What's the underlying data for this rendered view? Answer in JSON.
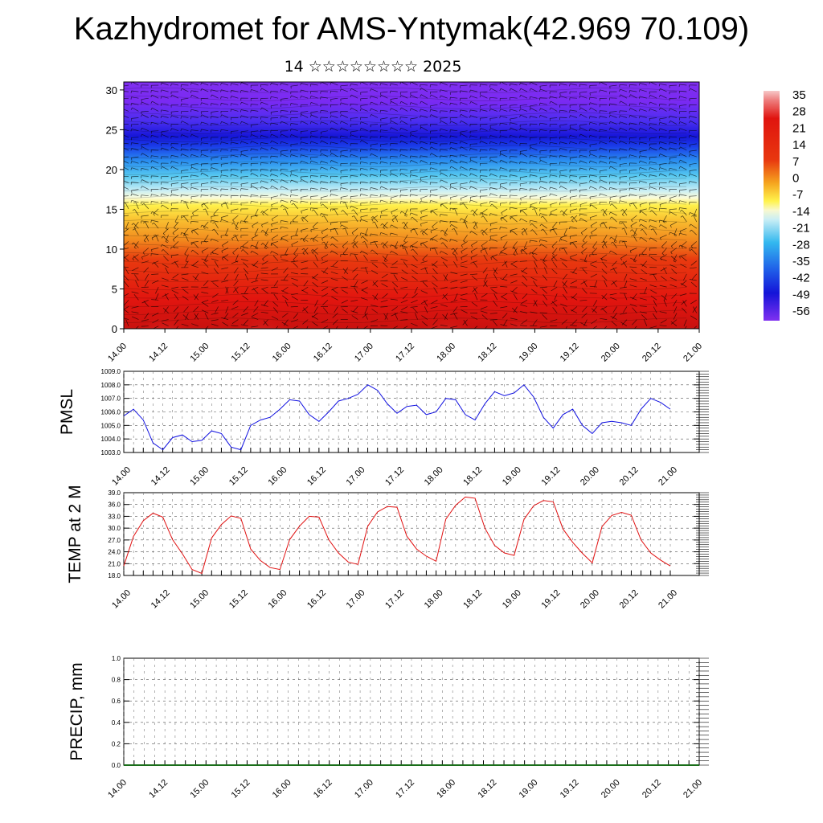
{
  "title": "Kazhydromet for AMS-Yntymak(42.969 70.109)",
  "subtitle": "14 ☆☆☆☆☆☆☆☆ 2025",
  "time_ticks": [
    "14.00",
    "14.12",
    "15.00",
    "15.12",
    "16.00",
    "16.12",
    "17.00",
    "17.12",
    "18.00",
    "18.12",
    "19.00",
    "19.12",
    "20.00",
    "20.12",
    "21.00"
  ],
  "chart_data": [
    {
      "type": "heatmap",
      "name": "temperature cross-section with wind barbs",
      "ylim": [
        0,
        31
      ],
      "yticks": [
        0,
        5,
        10,
        15,
        20,
        25,
        30
      ],
      "colorbar_labels": [
        "35",
        "28",
        "21",
        "14",
        "7",
        "0",
        "-7",
        "-14",
        "-21",
        "-28",
        "-35",
        "-42",
        "-49",
        "-56"
      ],
      "colors": {
        "top": "#7d26f2",
        "blue": "#1a1ee6",
        "cyan": "#2ab5f0",
        "light": "#c9eef5",
        "yellow": "#fff34d",
        "orange": "#f5a81e",
        "red": "#e6140f",
        "hot": "#f5a3a3"
      }
    },
    {
      "type": "line",
      "ylabel": "PMSL",
      "ylim": [
        1003.0,
        1009.0
      ],
      "yticks": [
        "1003.0",
        "1004.0",
        "1005.0",
        "1006.0",
        "1007.0",
        "1008.0",
        "1009.0"
      ],
      "color": "#1010e0",
      "values": [
        1005.7,
        1006.2,
        1005.4,
        1003.7,
        1003.2,
        1004.1,
        1004.3,
        1003.8,
        1003.9,
        1004.6,
        1004.4,
        1003.4,
        1003.2,
        1005.0,
        1005.4,
        1005.6,
        1006.2,
        1006.9,
        1006.8,
        1005.8,
        1005.3,
        1006.0,
        1006.8,
        1007.0,
        1007.3,
        1008.0,
        1007.6,
        1006.6,
        1005.9,
        1006.4,
        1006.5,
        1005.8,
        1006.0,
        1007.0,
        1006.9,
        1005.8,
        1005.4,
        1006.6,
        1007.5,
        1007.2,
        1007.4,
        1008.0,
        1007.1,
        1005.6,
        1004.8,
        1005.8,
        1006.2,
        1005.0,
        1004.4,
        1005.2,
        1005.3,
        1005.2,
        1005.0,
        1006.2,
        1007.0,
        1006.7,
        1006.2
      ]
    },
    {
      "type": "line",
      "ylabel": "TEMP at 2 M",
      "ylim": [
        18.0,
        39.0
      ],
      "yticks": [
        "18.0",
        "21.0",
        "24.0",
        "27.0",
        "30.0",
        "33.0",
        "36.0",
        "39.0"
      ],
      "color": "#e01010",
      "values": [
        20.4,
        27.9,
        31.9,
        33.8,
        32.8,
        27.1,
        23.5,
        19.5,
        18.5,
        27.5,
        30.9,
        33.1,
        32.5,
        24.7,
        21.8,
        20.0,
        19.5,
        27.1,
        30.5,
        33.0,
        32.8,
        27.1,
        23.7,
        21.4,
        20.8,
        30.5,
        34.1,
        35.5,
        35.3,
        28.0,
        24.7,
        22.9,
        21.6,
        32.3,
        35.8,
        37.9,
        37.6,
        30.0,
        25.6,
        23.7,
        23.1,
        32.2,
        35.7,
        37.0,
        36.7,
        29.8,
        26.4,
        23.6,
        21.2,
        30.4,
        33.2,
        34.0,
        33.3,
        27.0,
        23.7,
        21.9,
        20.4
      ]
    },
    {
      "type": "line",
      "ylabel": "PRECIP, mm",
      "ylim": [
        0,
        1.0
      ],
      "yticks": [
        "0.0",
        "0.2",
        "0.4",
        "0.6",
        "0.8",
        "1.0"
      ],
      "color": "#1a6e1a",
      "values": [
        0,
        0,
        0,
        0,
        0,
        0,
        0,
        0,
        0,
        0,
        0,
        0,
        0,
        0,
        0,
        0,
        0,
        0,
        0,
        0,
        0,
        0,
        0,
        0,
        0,
        0,
        0,
        0,
        0,
        0,
        0,
        0,
        0,
        0,
        0,
        0,
        0,
        0,
        0,
        0,
        0,
        0,
        0,
        0,
        0,
        0,
        0,
        0,
        0,
        0,
        0,
        0,
        0,
        0,
        0,
        0,
        0
      ]
    }
  ]
}
